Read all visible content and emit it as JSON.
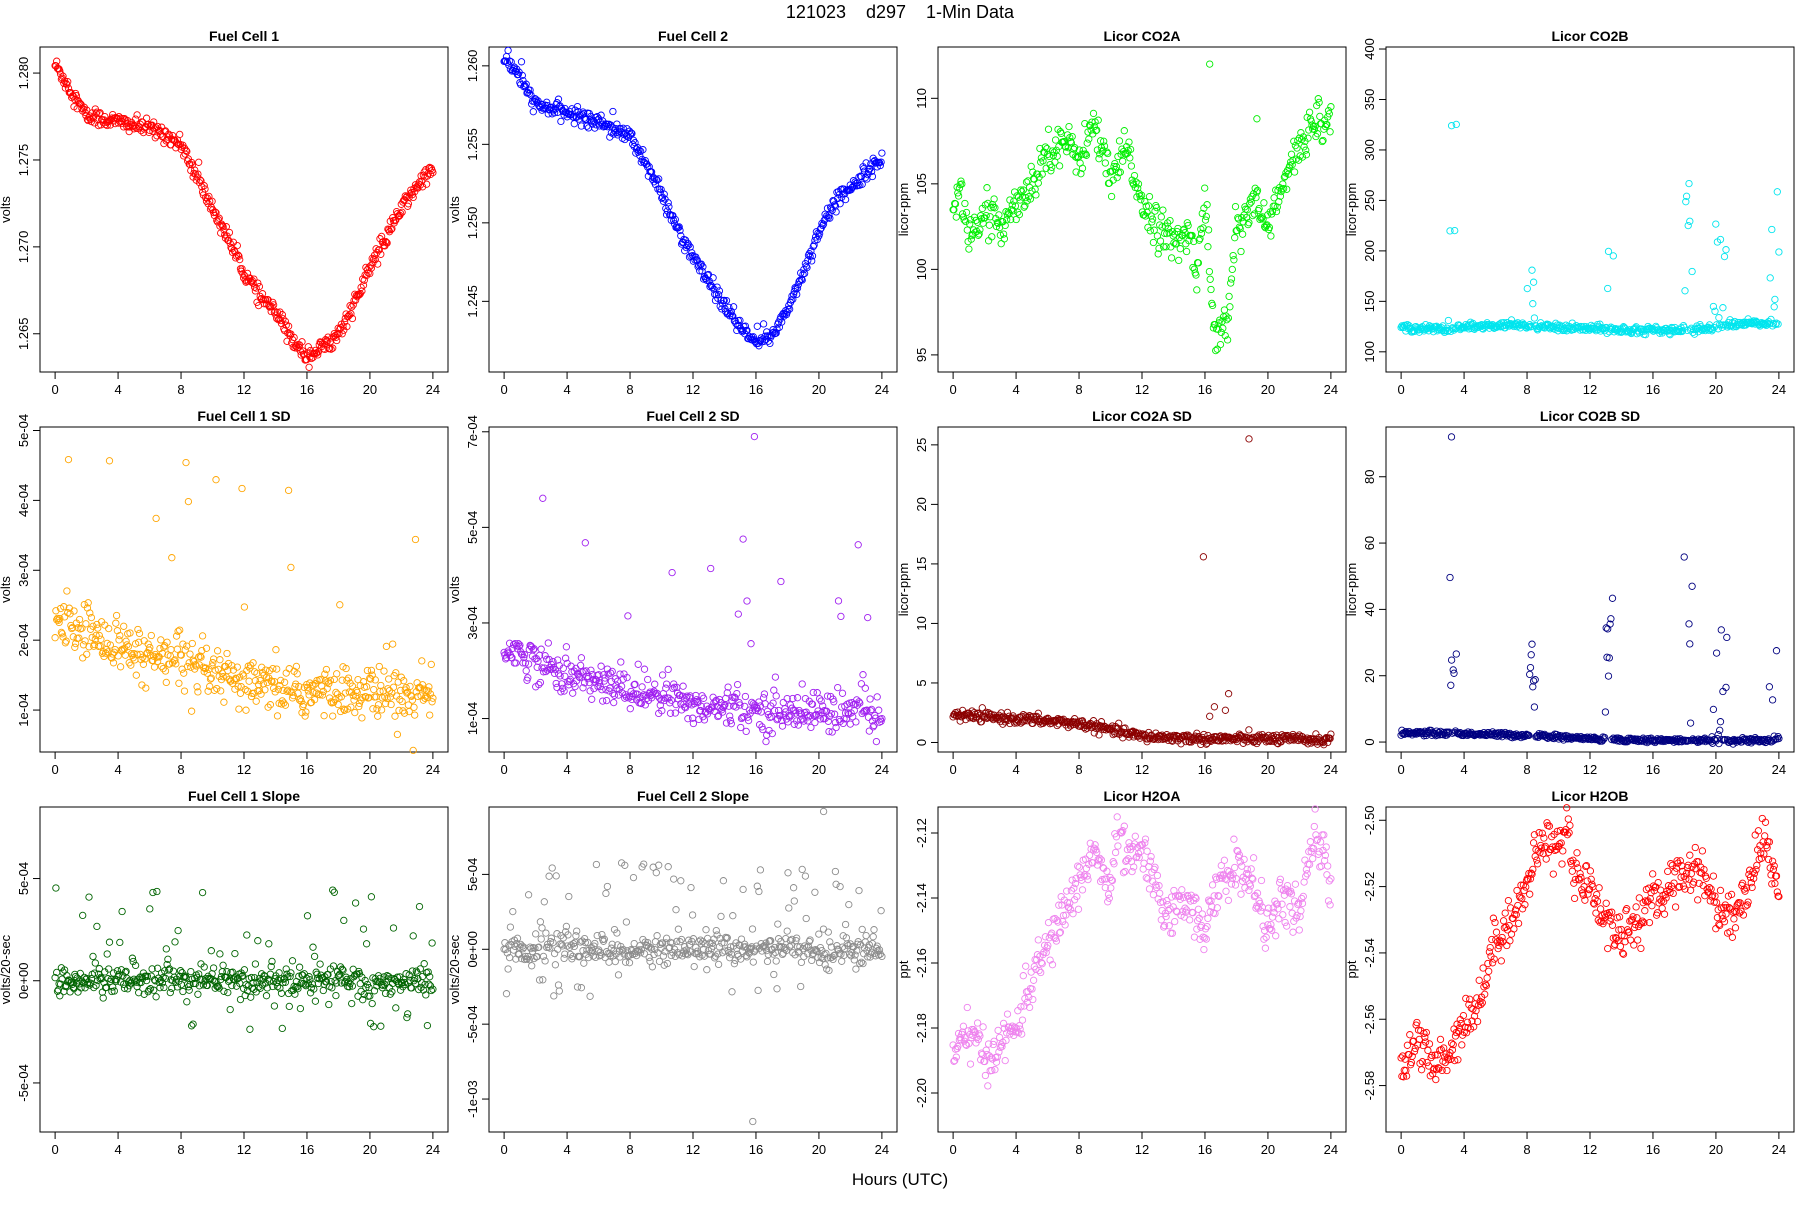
{
  "figure": {
    "title": "121023    d297    1-Min Data",
    "xlabel": "Hours (UTC)"
  },
  "chart_data": [
    {
      "type": "scatter",
      "title": "Fuel Cell 1",
      "ylabel": "volts",
      "color": "#ff0000",
      "xlim": [
        0,
        24
      ],
      "xticks": [
        0,
        4,
        8,
        12,
        16,
        20,
        24
      ],
      "ylim": [
        1.2628,
        1.2815
      ],
      "yticks": [
        1.265,
        1.27,
        1.275,
        1.28
      ],
      "ytick_labels": [
        "1.265",
        "1.270",
        "1.275",
        "1.280"
      ],
      "trend": [
        [
          0,
          1.2805
        ],
        [
          1,
          1.279
        ],
        [
          2,
          1.2775
        ],
        [
          4,
          1.2772
        ],
        [
          5,
          1.277
        ],
        [
          6,
          1.2768
        ],
        [
          7,
          1.2765
        ],
        [
          8,
          1.2758
        ],
        [
          9,
          1.274
        ],
        [
          10,
          1.2722
        ],
        [
          11,
          1.2705
        ],
        [
          12,
          1.2685
        ],
        [
          13,
          1.2672
        ],
        [
          14,
          1.2662
        ],
        [
          15,
          1.2648
        ],
        [
          16,
          1.2637
        ],
        [
          17,
          1.2642
        ],
        [
          18,
          1.265
        ],
        [
          19,
          1.2667
        ],
        [
          20,
          1.2688
        ],
        [
          21,
          1.2705
        ],
        [
          22,
          1.2722
        ],
        [
          23,
          1.2735
        ],
        [
          24,
          1.2745
        ]
      ],
      "spread": 0.0004,
      "outlier_prob": 0.03,
      "outlier_scale": 0.001
    },
    {
      "type": "scatter",
      "title": "Fuel Cell 2",
      "ylabel": "volts",
      "color": "#0000ff",
      "xlim": [
        0,
        24
      ],
      "xticks": [
        0,
        4,
        8,
        12,
        16,
        20,
        24
      ],
      "ylim": [
        1.2405,
        1.2612
      ],
      "yticks": [
        1.245,
        1.25,
        1.255,
        1.26
      ],
      "ytick_labels": [
        "1.245",
        "1.250",
        "1.255",
        "1.260"
      ],
      "trend": [
        [
          0,
          1.2605
        ],
        [
          1,
          1.2593
        ],
        [
          2,
          1.2575
        ],
        [
          4,
          1.257
        ],
        [
          6,
          1.2565
        ],
        [
          8,
          1.2555
        ],
        [
          9,
          1.2538
        ],
        [
          10,
          1.2518
        ],
        [
          11,
          1.2497
        ],
        [
          12,
          1.2478
        ],
        [
          13,
          1.2462
        ],
        [
          14,
          1.2447
        ],
        [
          15,
          1.2433
        ],
        [
          16,
          1.2423
        ],
        [
          17,
          1.2428
        ],
        [
          18,
          1.2445
        ],
        [
          19,
          1.2468
        ],
        [
          20,
          1.2495
        ],
        [
          21,
          1.2513
        ],
        [
          22,
          1.2523
        ],
        [
          23,
          1.2533
        ],
        [
          24,
          1.254
        ]
      ],
      "spread": 0.0004,
      "outlier_prob": 0.03,
      "outlier_scale": 0.001
    },
    {
      "type": "scatter",
      "title": "Licor CO2A",
      "ylabel": "licor-ppm",
      "color": "#00ee00",
      "xlim": [
        0,
        24
      ],
      "xticks": [
        0,
        4,
        8,
        12,
        16,
        20,
        24
      ],
      "ylim": [
        94,
        113
      ],
      "yticks": [
        95,
        100,
        105,
        110
      ],
      "ytick_labels": [
        "95",
        "100",
        "105",
        "110"
      ],
      "trend": [
        [
          0,
          104
        ],
        [
          0.5,
          104.5
        ],
        [
          1,
          102
        ],
        [
          2,
          103
        ],
        [
          3,
          102.5
        ],
        [
          4,
          104
        ],
        [
          5,
          105
        ],
        [
          6,
          107
        ],
        [
          7,
          107.5
        ],
        [
          8,
          106.5
        ],
        [
          9,
          108.5
        ],
        [
          10,
          105
        ],
        [
          11,
          107
        ],
        [
          12,
          104
        ],
        [
          13,
          102.5
        ],
        [
          14,
          101.5
        ],
        [
          15,
          102
        ],
        [
          15.5,
          100
        ],
        [
          16,
          104.5
        ],
        [
          16.5,
          97
        ],
        [
          17,
          96
        ],
        [
          17.5,
          97.5
        ],
        [
          18,
          102.5
        ],
        [
          19,
          104
        ],
        [
          20,
          102.5
        ],
        [
          21,
          105
        ],
        [
          22,
          107
        ],
        [
          23,
          109
        ],
        [
          24,
          108.5
        ]
      ],
      "spread": 1.0,
      "outlier_prob": 0.01,
      "outlier_scale": 3,
      "extra": [
        [
          16.3,
          112
        ],
        [
          19.3,
          108.8
        ]
      ]
    },
    {
      "type": "scatter",
      "title": "Licor CO2B",
      "ylabel": "licor-ppm",
      "color": "#00e5ee",
      "xlim": [
        0,
        24
      ],
      "xticks": [
        0,
        4,
        8,
        12,
        16,
        20,
        24
      ],
      "ylim": [
        80,
        402
      ],
      "yticks": [
        100,
        150,
        200,
        250,
        300,
        350,
        400
      ],
      "ytick_labels": [
        "100",
        "150",
        "200",
        "250",
        "300",
        "350",
        "400"
      ],
      "trend": [
        [
          0,
          124
        ],
        [
          3,
          122
        ],
        [
          4,
          125
        ],
        [
          8,
          126
        ],
        [
          10,
          124
        ],
        [
          14,
          122
        ],
        [
          18,
          121
        ],
        [
          20,
          125
        ],
        [
          22,
          128
        ],
        [
          24,
          128
        ]
      ],
      "spread": 3,
      "outlier_prob": 0.0,
      "outlier_scale": 0,
      "spikes": [
        [
          3.0,
          3.6,
          390
        ],
        [
          8.0,
          8.6,
          185
        ],
        [
          12.9,
          13.5,
          315
        ],
        [
          17.9,
          18.6,
          290
        ],
        [
          19.8,
          20.7,
          235
        ],
        [
          23.3,
          24,
          268
        ]
      ]
    },
    {
      "type": "scatter",
      "title": "Fuel Cell 1 SD",
      "ylabel": "volts",
      "color": "#ffa500",
      "xlim": [
        0,
        24
      ],
      "xticks": [
        0,
        4,
        8,
        12,
        16,
        20,
        24
      ],
      "ylim": [
        4e-05,
        0.000505
      ],
      "yticks": [
        0.0001,
        0.0002,
        0.0003,
        0.0004,
        0.0005
      ],
      "ytick_labels": [
        "1e-04",
        "2e-04",
        "3e-04",
        "4e-04",
        "5e-04"
      ],
      "trend": [
        [
          0,
          0.00022
        ],
        [
          2,
          0.000215
        ],
        [
          4,
          0.00019
        ],
        [
          8,
          0.000165
        ],
        [
          12,
          0.000135
        ],
        [
          16,
          0.000125
        ],
        [
          20,
          0.000125
        ],
        [
          24,
          0.00012
        ]
      ],
      "spread": 3e-05,
      "outlier_prob": 0.06,
      "outlier_scale": 0.00025
    },
    {
      "type": "scatter",
      "title": "Fuel Cell 2 SD",
      "ylabel": "volts",
      "color": "#a020f0",
      "xlim": [
        0,
        24
      ],
      "xticks": [
        0,
        4,
        8,
        12,
        16,
        20,
        24
      ],
      "ylim": [
        3e-05,
        0.00071
      ],
      "yticks": [
        0.0001,
        0.0003,
        0.0005,
        0.0007
      ],
      "ytick_labels": [
        "1e-04",
        "3e-04",
        "5e-04",
        "7e-04"
      ],
      "trend": [
        [
          0,
          0.00025
        ],
        [
          2,
          0.00022
        ],
        [
          4,
          0.00019
        ],
        [
          8,
          0.00016
        ],
        [
          12,
          0.00013
        ],
        [
          16,
          0.000115
        ],
        [
          20,
          0.000115
        ],
        [
          24,
          0.00011
        ]
      ],
      "spread": 3.5e-05,
      "outlier_prob": 0.05,
      "outlier_scale": 0.00028,
      "extra": [
        [
          15.9,
          0.00069
        ]
      ]
    },
    {
      "type": "scatter",
      "title": "Licor CO2A SD",
      "ylabel": "licor-ppm",
      "color": "#8b0000",
      "xlim": [
        0,
        24
      ],
      "xticks": [
        0,
        4,
        8,
        12,
        16,
        20,
        24
      ],
      "ylim": [
        -0.8,
        26.5
      ],
      "yticks": [
        0,
        5,
        10,
        15,
        20,
        25
      ],
      "ytick_labels": [
        "0",
        "5",
        "10",
        "15",
        "20",
        "25"
      ],
      "trend": [
        [
          0,
          2.3
        ],
        [
          4,
          2.0
        ],
        [
          8,
          1.6
        ],
        [
          9.5,
          1.2
        ],
        [
          12,
          0.5
        ],
        [
          16,
          0.3
        ],
        [
          20,
          0.3
        ],
        [
          24,
          0.2
        ]
      ],
      "spread": 0.35,
      "outlier_prob": 0.0,
      "outlier_scale": 0,
      "extra": [
        [
          15.9,
          15.6
        ],
        [
          18.8,
          25.5
        ],
        [
          17.5,
          4.1
        ],
        [
          16.3,
          2.2
        ],
        [
          16.6,
          3.0
        ],
        [
          17.3,
          2.7
        ]
      ]
    },
    {
      "type": "scatter",
      "title": "Licor CO2B SD",
      "ylabel": "licor-ppm",
      "color": "#000080",
      "xlim": [
        0,
        24
      ],
      "xticks": [
        0,
        4,
        8,
        12,
        16,
        20,
        24
      ],
      "ylim": [
        -3,
        95
      ],
      "yticks": [
        0,
        20,
        40,
        60,
        80
      ],
      "ytick_labels": [
        "0",
        "20",
        "40",
        "60",
        "80"
      ],
      "trend": [
        [
          0,
          2.8
        ],
        [
          4,
          2.5
        ],
        [
          8,
          2.0
        ],
        [
          12,
          1.0
        ],
        [
          16,
          0.5
        ],
        [
          24,
          0.4
        ]
      ],
      "spread": 0.6,
      "outlier_prob": 0.0,
      "outlier_scale": 0,
      "spikes": [
        [
          3.0,
          3.6,
          66
        ],
        [
          8.0,
          8.6,
          31
        ],
        [
          12.9,
          13.5,
          50
        ],
        [
          17.9,
          18.6,
          71
        ],
        [
          19.8,
          20.7,
          41
        ],
        [
          23.3,
          24,
          33
        ]
      ],
      "extra": [
        [
          3.2,
          92
        ]
      ]
    },
    {
      "type": "scatter",
      "title": "Fuel Cell 1 Slope",
      "ylabel": "volts/20-sec",
      "color": "#006400",
      "xlim": [
        0,
        24
      ],
      "xticks": [
        0,
        4,
        8,
        12,
        16,
        20,
        24
      ],
      "ylim": [
        -0.00074,
        0.00085
      ],
      "yticks": [
        -0.0005,
        0.0,
        0.0005
      ],
      "ytick_labels": [
        "-5e-04",
        "0e+00",
        "5e-04"
      ],
      "trend": [
        [
          0,
          0.0
        ],
        [
          24,
          0.0
        ]
      ],
      "spread": 6e-05,
      "outlier_prob": 0.18,
      "outlier_scale": 0.00035
    },
    {
      "type": "scatter",
      "title": "Fuel Cell 2 Slope",
      "ylabel": "volts/20-sec",
      "color": "#8c8c8c",
      "xlim": [
        0,
        24
      ],
      "xticks": [
        0,
        4,
        8,
        12,
        16,
        20,
        24
      ],
      "ylim": [
        -0.00122,
        0.00095
      ],
      "yticks": [
        -0.001,
        -0.0005,
        0.0,
        0.0005
      ],
      "ytick_labels": [
        "-1e-03",
        "-5e-04",
        "0e+00",
        "5e-04"
      ],
      "trend": [
        [
          0,
          0.0
        ],
        [
          24,
          0.0
        ]
      ],
      "spread": 8e-05,
      "outlier_prob": 0.18,
      "outlier_scale": 0.00045,
      "extra": [
        [
          15.8,
          -0.00115
        ],
        [
          20.3,
          0.00092
        ]
      ]
    },
    {
      "type": "scatter",
      "title": "Licor H2OA",
      "ylabel": "ppt",
      "color": "#ee82ee",
      "xlim": [
        0,
        24
      ],
      "xticks": [
        0,
        4,
        8,
        12,
        16,
        20,
        24
      ],
      "ylim": [
        -2.212,
        -2.112
      ],
      "yticks": [
        -2.2,
        -2.18,
        -2.16,
        -2.14,
        -2.12
      ],
      "ytick_labels": [
        "-2.20",
        "-2.18",
        "-2.16",
        "-2.14",
        "-2.12"
      ],
      "trend": [
        [
          0,
          -2.19
        ],
        [
          1,
          -2.18
        ],
        [
          2,
          -2.19
        ],
        [
          3,
          -2.185
        ],
        [
          4,
          -2.18
        ],
        [
          5,
          -2.165
        ],
        [
          6,
          -2.155
        ],
        [
          7,
          -2.145
        ],
        [
          8,
          -2.135
        ],
        [
          9,
          -2.125
        ],
        [
          10,
          -2.14
        ],
        [
          10.5,
          -2.115
        ],
        [
          11,
          -2.13
        ],
        [
          12,
          -2.125
        ],
        [
          13,
          -2.14
        ],
        [
          14,
          -2.145
        ],
        [
          15,
          -2.14
        ],
        [
          16,
          -2.15
        ],
        [
          17,
          -2.135
        ],
        [
          18,
          -2.13
        ],
        [
          19,
          -2.135
        ],
        [
          20,
          -2.15
        ],
        [
          21,
          -2.14
        ],
        [
          22,
          -2.145
        ],
        [
          23,
          -2.12
        ],
        [
          24,
          -2.135
        ]
      ],
      "spread": 0.006,
      "outlier_prob": 0.0,
      "outlier_scale": 0
    },
    {
      "type": "scatter",
      "title": "Licor H2OB",
      "ylabel": "ppt",
      "color": "#ff0000",
      "xlim": [
        0,
        24
      ],
      "xticks": [
        0,
        4,
        8,
        12,
        16,
        20,
        24
      ],
      "ylim": [
        -2.594,
        -2.496
      ],
      "yticks": [
        -2.58,
        -2.56,
        -2.54,
        -2.52,
        -2.5
      ],
      "ytick_labels": [
        "-2.58",
        "-2.56",
        "-2.54",
        "-2.52",
        "-2.50"
      ],
      "trend": [
        [
          0,
          -2.575
        ],
        [
          1,
          -2.565
        ],
        [
          2,
          -2.575
        ],
        [
          3,
          -2.57
        ],
        [
          4,
          -2.56
        ],
        [
          5,
          -2.555
        ],
        [
          6,
          -2.535
        ],
        [
          7,
          -2.53
        ],
        [
          8,
          -2.52
        ],
        [
          9,
          -2.505
        ],
        [
          10,
          -2.51
        ],
        [
          10.5,
          -2.5
        ],
        [
          11,
          -2.515
        ],
        [
          12,
          -2.52
        ],
        [
          13,
          -2.53
        ],
        [
          14,
          -2.535
        ],
        [
          15,
          -2.53
        ],
        [
          16,
          -2.525
        ],
        [
          17,
          -2.52
        ],
        [
          18,
          -2.515
        ],
        [
          19,
          -2.515
        ],
        [
          20,
          -2.525
        ],
        [
          21,
          -2.53
        ],
        [
          22,
          -2.52
        ],
        [
          23,
          -2.505
        ],
        [
          24,
          -2.52
        ]
      ],
      "spread": 0.006,
      "outlier_prob": 0.0,
      "outlier_scale": 0
    }
  ]
}
